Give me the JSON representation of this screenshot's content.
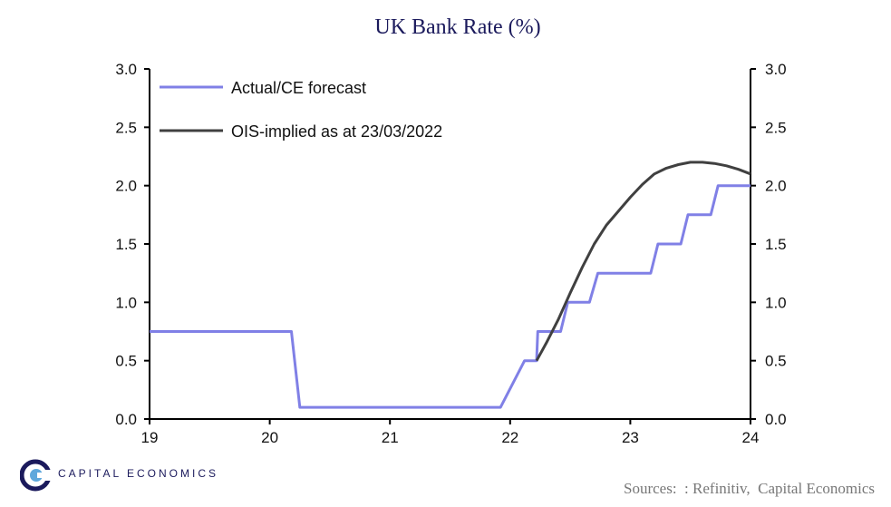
{
  "chart_data": {
    "type": "line",
    "title": "UK Bank Rate (%)",
    "xlim": [
      19,
      24
    ],
    "ylim": [
      0,
      3
    ],
    "x_ticks": [
      "19",
      "20",
      "21",
      "22",
      "23",
      "24"
    ],
    "y_ticks": [
      "0.0",
      "0.5",
      "1.0",
      "1.5",
      "2.0",
      "2.5",
      "3.0"
    ],
    "series": [
      {
        "name": "Actual/CE forecast",
        "color": "#8080e6",
        "points": [
          [
            19.0,
            0.75
          ],
          [
            20.18,
            0.75
          ],
          [
            20.25,
            0.1
          ],
          [
            21.92,
            0.1
          ],
          [
            22.12,
            0.5
          ],
          [
            22.22,
            0.5
          ],
          [
            22.23,
            0.75
          ],
          [
            22.42,
            0.75
          ],
          [
            22.48,
            1.0
          ],
          [
            22.66,
            1.0
          ],
          [
            22.73,
            1.25
          ],
          [
            23.17,
            1.25
          ],
          [
            23.23,
            1.5
          ],
          [
            23.42,
            1.5
          ],
          [
            23.48,
            1.75
          ],
          [
            23.67,
            1.75
          ],
          [
            23.73,
            2.0
          ],
          [
            24.0,
            2.0
          ]
        ]
      },
      {
        "name": "OIS-implied as at 23/03/2022",
        "color": "#404040",
        "points": [
          [
            22.22,
            0.5
          ],
          [
            22.3,
            0.65
          ],
          [
            22.4,
            0.85
          ],
          [
            22.5,
            1.08
          ],
          [
            22.6,
            1.3
          ],
          [
            22.7,
            1.5
          ],
          [
            22.8,
            1.66
          ],
          [
            22.9,
            1.78
          ],
          [
            23.0,
            1.9
          ],
          [
            23.1,
            2.01
          ],
          [
            23.2,
            2.1
          ],
          [
            23.3,
            2.15
          ],
          [
            23.4,
            2.18
          ],
          [
            23.5,
            2.2
          ],
          [
            23.6,
            2.2
          ],
          [
            23.7,
            2.19
          ],
          [
            23.8,
            2.17
          ],
          [
            23.9,
            2.14
          ],
          [
            24.0,
            2.1
          ]
        ]
      }
    ],
    "legend": "top-left",
    "grid": false
  },
  "footer": {
    "logo_text": "CAPITAL ECONOMICS",
    "source": "Sources:  : Refinitiv,  Capital Economics"
  }
}
